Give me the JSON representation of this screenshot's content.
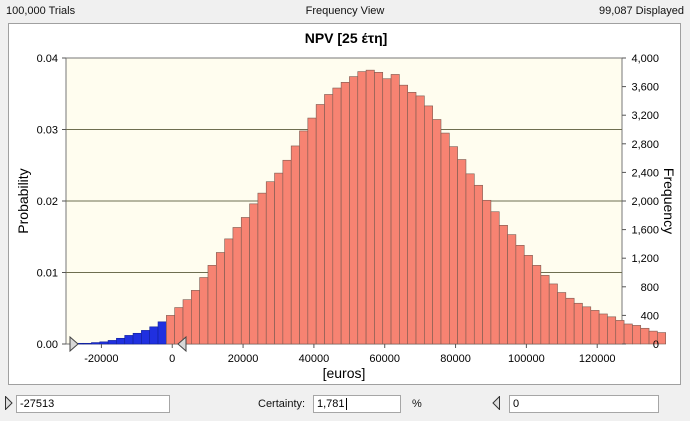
{
  "header": {
    "trials_label": "100,000 Trials",
    "view_label": "Frequency View",
    "displayed_label": "99,087 Displayed"
  },
  "chart": {
    "title": "NPV [25 έτη]",
    "ylabel_left": "Probability",
    "ylabel_right": "Frequency",
    "xlabel": "[euros]"
  },
  "colors": {
    "plot_bg": "#fffdef",
    "bar_main": "#f78372",
    "bar_tail": "#2030e0",
    "bar_edge": "#7a5a50",
    "tail_edge": "#10209a"
  },
  "chart_data": {
    "type": "bar",
    "title": "NPV [25 έτη]",
    "xlabel": "[euros]",
    "ylabel": "Probability",
    "ylabel_right": "Frequency",
    "xlim": [
      -30000,
      127000
    ],
    "ylim": [
      0,
      0.04
    ],
    "ylim_right": [
      0,
      4000
    ],
    "x_ticks": [
      -20000,
      0,
      20000,
      40000,
      60000,
      80000,
      100000,
      120000
    ],
    "x_tick_labels": [
      "-20000",
      "0",
      "20000",
      "40000",
      "60000",
      "80000",
      "100000",
      "120000"
    ],
    "y_ticks": [
      0,
      0.01,
      0.02,
      0.03,
      0.04
    ],
    "y_tick_labels": [
      "0.00",
      "0.01",
      "0.02",
      "0.03",
      "0.04"
    ],
    "y_right_ticks": [
      0,
      400,
      800,
      1200,
      1600,
      2000,
      2400,
      2800,
      3200,
      3600,
      4000
    ],
    "y_right_tick_labels": [
      "0",
      "400",
      "800",
      "1,200",
      "1,600",
      "2,000",
      "2,400",
      "2,800",
      "3,200",
      "3,600",
      "4,000"
    ],
    "grid": true,
    "bin_width": 2350,
    "bins_start": -27513,
    "tail_cutoff": 0,
    "values": [
      0.0001,
      0.0001,
      0.0002,
      0.0003,
      0.0005,
      0.0008,
      0.0012,
      0.0015,
      0.0019,
      0.0024,
      0.0031,
      0.004,
      0.0051,
      0.0062,
      0.0075,
      0.0093,
      0.011,
      0.0128,
      0.0147,
      0.0163,
      0.0177,
      0.0196,
      0.0211,
      0.0227,
      0.0239,
      0.0257,
      0.0277,
      0.0298,
      0.0316,
      0.0335,
      0.0349,
      0.0358,
      0.0366,
      0.0374,
      0.0381,
      0.0383,
      0.038,
      0.0371,
      0.0377,
      0.0362,
      0.0352,
      0.0347,
      0.0333,
      0.0314,
      0.0295,
      0.0276,
      0.0258,
      0.0238,
      0.0222,
      0.0201,
      0.0185,
      0.0166,
      0.0153,
      0.0138,
      0.0124,
      0.011,
      0.0096,
      0.0084,
      0.0072,
      0.0064,
      0.0057,
      0.0052,
      0.0047,
      0.0042,
      0.0038,
      0.0033,
      0.0028,
      0.0026,
      0.0022,
      0.0018,
      0.0016
    ]
  },
  "footer": {
    "left_value": "-27513",
    "certainty_label": "Certainty:",
    "certainty_value": "1,781",
    "percent_label": "%",
    "right_value": "0"
  }
}
